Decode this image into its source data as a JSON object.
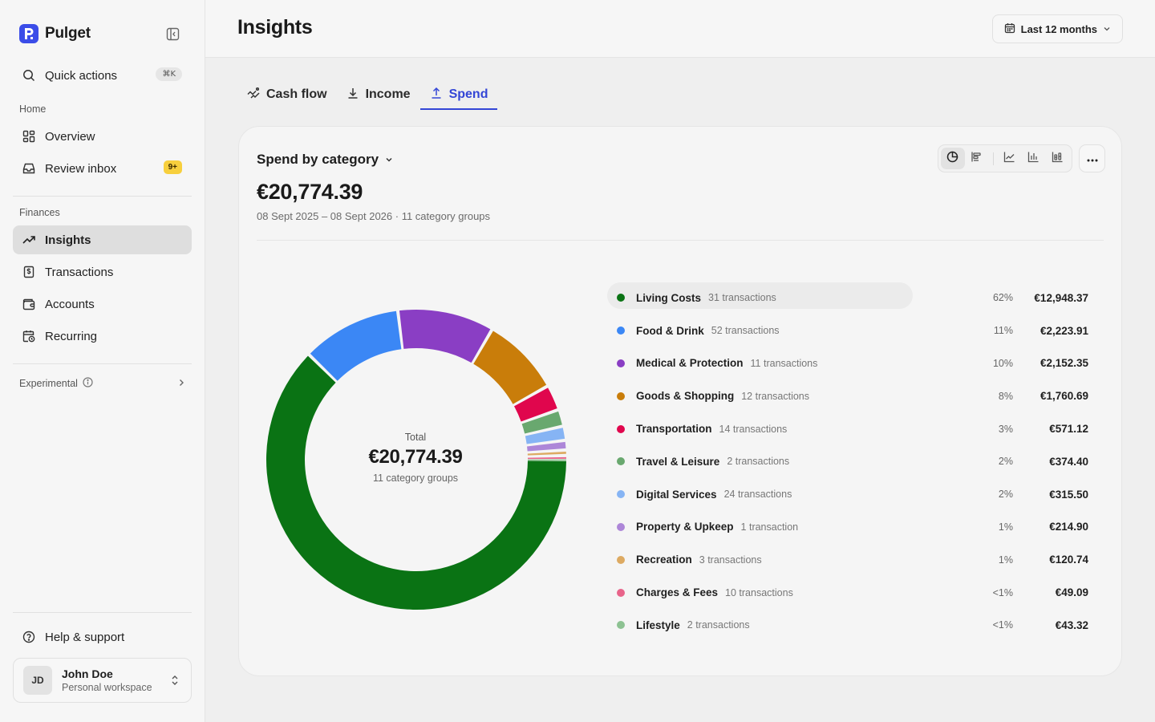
{
  "brand": {
    "name": "Pulget",
    "logo_letter": "P"
  },
  "sidebar": {
    "quick_actions": {
      "label": "Quick actions",
      "shortcut": "⌘K"
    },
    "sections": {
      "home": "Home",
      "finances": "Finances",
      "experimental": "Experimental"
    },
    "home_items": [
      {
        "label": "Overview",
        "icon": "grid-icon"
      },
      {
        "label": "Review inbox",
        "icon": "inbox-icon",
        "badge": "9+"
      }
    ],
    "finance_items": [
      {
        "label": "Insights",
        "icon": "trend-icon",
        "active": true
      },
      {
        "label": "Transactions",
        "icon": "receipt-icon"
      },
      {
        "label": "Accounts",
        "icon": "wallet-icon"
      },
      {
        "label": "Recurring",
        "icon": "calendar-recurring-icon"
      }
    ],
    "help": "Help & support",
    "user": {
      "initials": "JD",
      "name": "John Doe",
      "workspace": "Personal workspace"
    }
  },
  "header": {
    "title": "Insights",
    "range_label": "Last 12 months"
  },
  "tabs": [
    {
      "label": "Cash flow",
      "icon": "cashflow-icon"
    },
    {
      "label": "Income",
      "icon": "download-icon"
    },
    {
      "label": "Spend",
      "icon": "upload-icon",
      "active": true
    }
  ],
  "card": {
    "title": "Spend by category",
    "total": "€20,774.39",
    "subtitle": "08 Sept 2025 – 08 Sept 2026 · 11 category groups",
    "center": {
      "label": "Total",
      "value": "€20,774.39",
      "sub": "11 category groups"
    }
  },
  "colors": {
    "accent": "#3446d6",
    "badge": "#f7cf3d"
  },
  "chart_data": {
    "type": "pie",
    "title": "Spend by category",
    "categories": [
      {
        "name": "Living Costs",
        "transactions": "31 transactions",
        "percent": "62%",
        "amount": "€12,948.37",
        "value": 12948.37,
        "color": "#0a7314"
      },
      {
        "name": "Food & Drink",
        "transactions": "52 transactions",
        "percent": "11%",
        "amount": "€2,223.91",
        "value": 2223.91,
        "color": "#3b87f5"
      },
      {
        "name": "Medical & Protection",
        "transactions": "11 transactions",
        "percent": "10%",
        "amount": "€2,152.35",
        "value": 2152.35,
        "color": "#8a3ec4"
      },
      {
        "name": "Goods & Shopping",
        "transactions": "12 transactions",
        "percent": "8%",
        "amount": "€1,760.69",
        "value": 1760.69,
        "color": "#c97d0a"
      },
      {
        "name": "Transportation",
        "transactions": "14 transactions",
        "percent": "3%",
        "amount": "€571.12",
        "value": 571.12,
        "color": "#e0064d"
      },
      {
        "name": "Travel & Leisure",
        "transactions": "2 transactions",
        "percent": "2%",
        "amount": "€374.40",
        "value": 374.4,
        "color": "#69a86f"
      },
      {
        "name": "Digital Services",
        "transactions": "24 transactions",
        "percent": "2%",
        "amount": "€315.50",
        "value": 315.5,
        "color": "#86b4f4"
      },
      {
        "name": "Property & Upkeep",
        "transactions": "1 transaction",
        "percent": "1%",
        "amount": "€214.90",
        "value": 214.9,
        "color": "#ad86d8"
      },
      {
        "name": "Recreation",
        "transactions": "3 transactions",
        "percent": "1%",
        "amount": "€120.74",
        "value": 120.74,
        "color": "#ddaa62"
      },
      {
        "name": "Charges & Fees",
        "transactions": "10 transactions",
        "percent": "<1%",
        "amount": "€49.09",
        "value": 49.09,
        "color": "#e8648a"
      },
      {
        "name": "Lifestyle",
        "transactions": "2 transactions",
        "percent": "<1%",
        "amount": "€43.32",
        "value": 43.32,
        "color": "#8dc292"
      }
    ]
  }
}
